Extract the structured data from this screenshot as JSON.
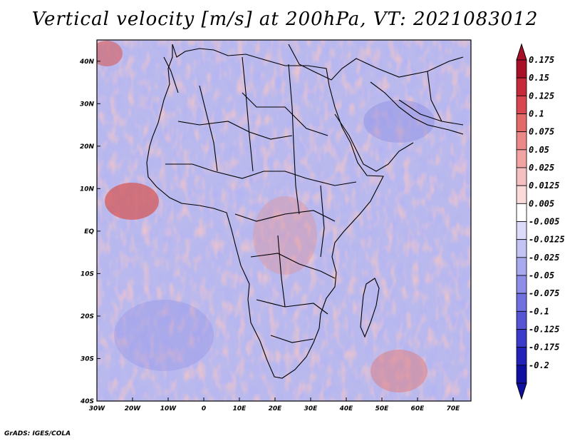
{
  "title": "Vertical velocity [m/s] at 200hPa, VT: 2021083012",
  "footer": "GrADS: IGES/COLA",
  "map": {
    "lon_range": [
      -30,
      75
    ],
    "lat_range": [
      -40,
      45
    ],
    "lon_ticks": [
      "30W",
      "20W",
      "10W",
      "0",
      "10E",
      "20E",
      "30E",
      "40E",
      "50E",
      "60E",
      "70E"
    ],
    "lat_ticks": [
      "40N",
      "30N",
      "20N",
      "10N",
      "EQ",
      "10S",
      "20S",
      "30S",
      "40S"
    ]
  },
  "colorbar": {
    "levels": [
      "0.175",
      "0.15",
      "0.125",
      "0.1",
      "0.075",
      "0.05",
      "0.025",
      "0.0125",
      "0.005",
      "-0.005",
      "-0.0125",
      "-0.025",
      "-0.05",
      "-0.075",
      "-0.1",
      "-0.125",
      "-0.175",
      "-0.2"
    ],
    "colors": [
      "#a8102a",
      "#c62a3a",
      "#d8474f",
      "#e46a6a",
      "#ec8888",
      "#f2a4a4",
      "#f7c0c0",
      "#fbdada",
      "#ffffff",
      "#dcdcfa",
      "#c4c4f4",
      "#a9a9ee",
      "#8e8ee8",
      "#7070e0",
      "#5555d6",
      "#3a3acb",
      "#2222bb",
      "#1010a0"
    ],
    "top_color": "#a8102a",
    "bottom_color": "#1010a0"
  }
}
